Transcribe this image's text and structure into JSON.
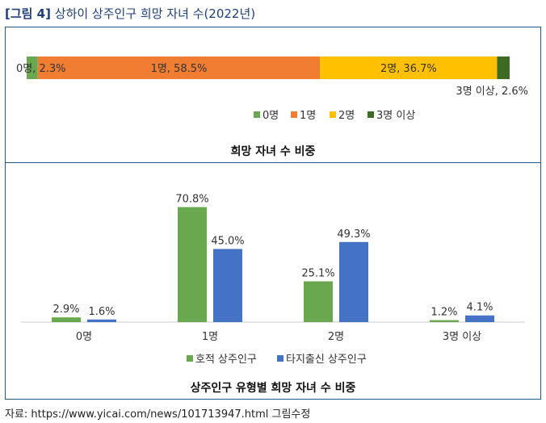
{
  "figure": {
    "label": "[그림 4]",
    "title": "상하이 상주인구 희망 자녀 수(2022년)",
    "source": "자료: https://www.yicai.com/news/101713947.html 그림수정"
  },
  "chart_data": [
    {
      "type": "bar",
      "orientation": "horizontal-stacked-100",
      "title": "희망 자녀 수 비중",
      "categories": [
        "0명",
        "1명",
        "2명",
        "3명 이상"
      ],
      "values": [
        2.3,
        58.5,
        36.7,
        2.6
      ],
      "labels": [
        "0명, 2.3%",
        "1명, 58.5%",
        "2명, 36.7%",
        "3명 이상, 2.6%"
      ],
      "colors": [
        "#6aa84f",
        "#f07d31",
        "#ffc000",
        "#3d6b24"
      ],
      "legend": "bottom"
    },
    {
      "type": "bar",
      "title": "상주인구 유형별 희망 자녀 수 비중",
      "categories": [
        "0명",
        "1명",
        "2명",
        "3명 이상"
      ],
      "series": [
        {
          "name": "호적 상주인구",
          "values": [
            2.9,
            70.8,
            25.1,
            1.2
          ],
          "labels": [
            "2.9%",
            "70.8%",
            "25.1%",
            "1.2%"
          ],
          "color": "#6aa84f"
        },
        {
          "name": "타지출신 상주인구",
          "values": [
            1.6,
            45.0,
            49.3,
            4.1
          ],
          "labels": [
            "1.6%",
            "45.0%",
            "49.3%",
            "4.1%"
          ],
          "color": "#4472c4"
        }
      ],
      "ylim": [
        0,
        80
      ],
      "legend": "bottom"
    }
  ]
}
